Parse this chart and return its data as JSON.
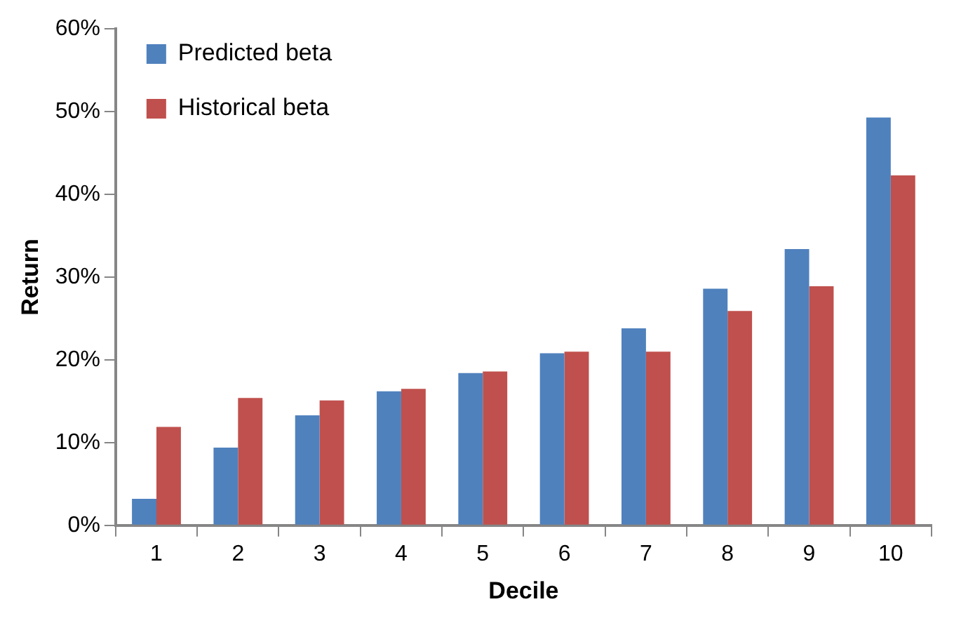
{
  "chart_data": {
    "type": "bar",
    "xlabel": "Decile",
    "ylabel": "Return",
    "categories": [
      "1",
      "2",
      "3",
      "4",
      "5",
      "6",
      "7",
      "8",
      "9",
      "10"
    ],
    "series": [
      {
        "name": "Predicted beta",
        "color": "#4f81bd",
        "values": [
          3.2,
          9.4,
          13.3,
          16.2,
          18.4,
          20.8,
          23.8,
          28.6,
          33.4,
          49.3
        ]
      },
      {
        "name": "Historical beta",
        "color": "#c0504d",
        "values": [
          11.9,
          15.4,
          15.1,
          16.5,
          18.6,
          21.0,
          21.0,
          25.9,
          28.9,
          42.3
        ]
      }
    ],
    "ylim": [
      0,
      60
    ],
    "yticks": [
      {
        "value": 0,
        "label": "0%"
      },
      {
        "value": 10,
        "label": "10%"
      },
      {
        "value": 20,
        "label": "20%"
      },
      {
        "value": 30,
        "label": "30%"
      },
      {
        "value": 40,
        "label": "40%"
      },
      {
        "value": 50,
        "label": "50%"
      },
      {
        "value": 60,
        "label": "60%"
      }
    ],
    "grid": false,
    "legend": "top left"
  }
}
